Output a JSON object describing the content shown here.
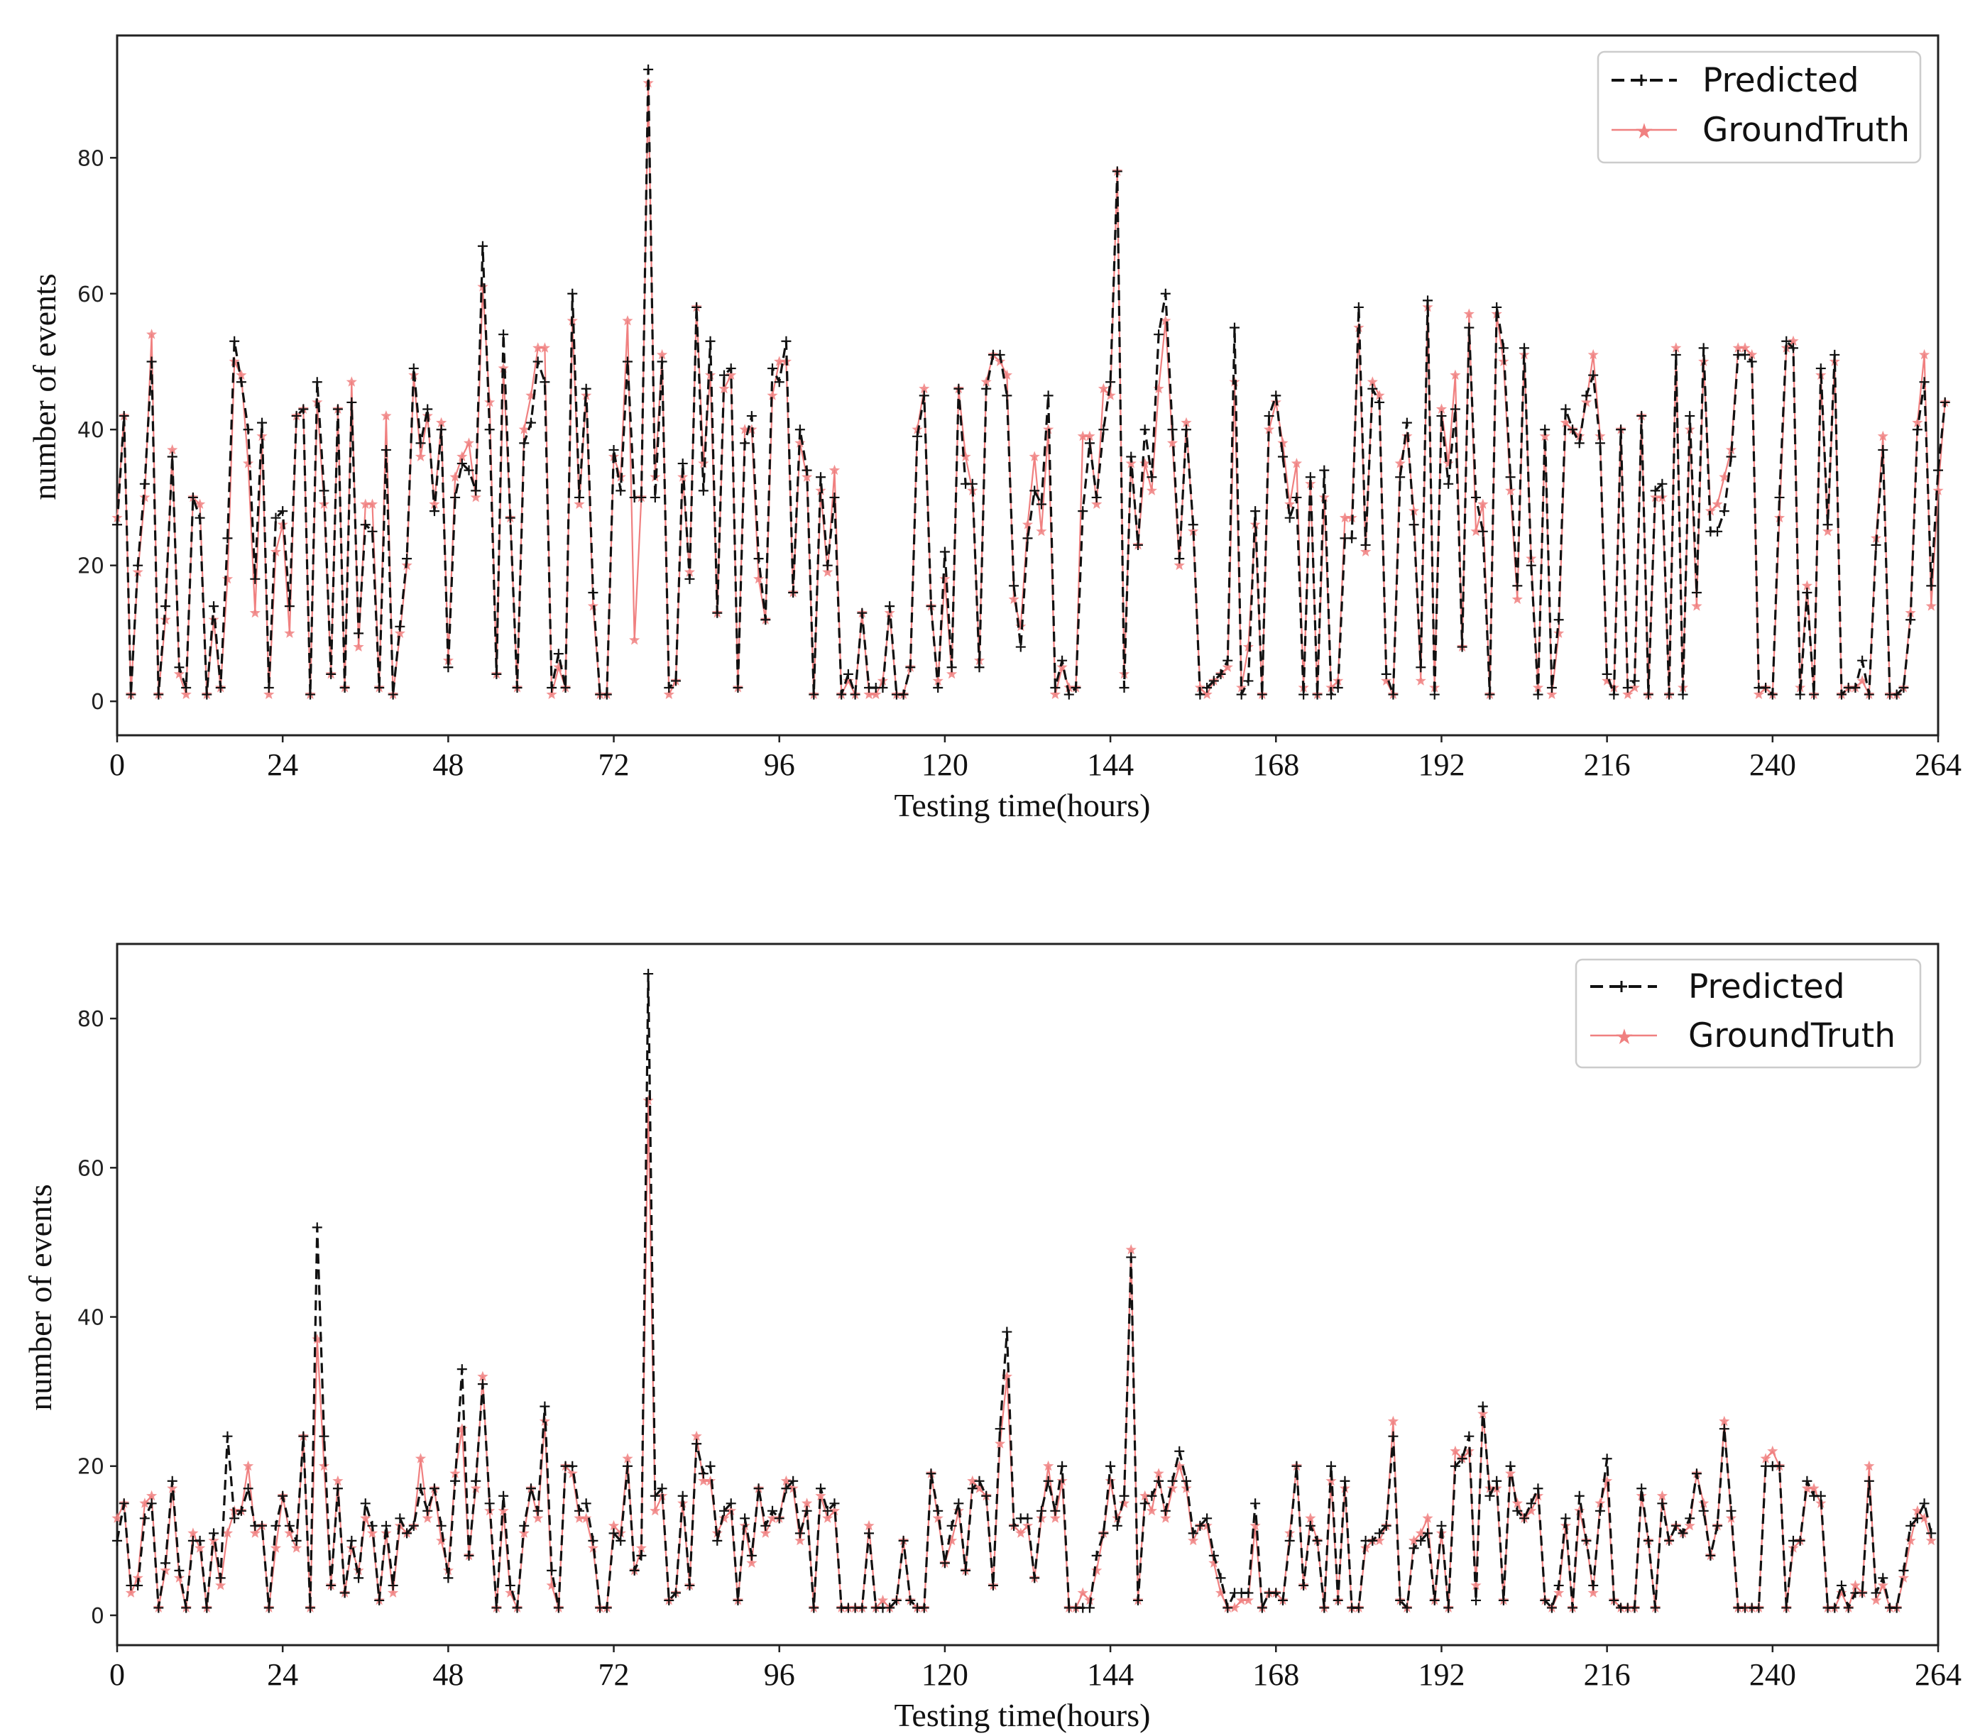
{
  "colors": {
    "predicted": "#111111",
    "groundtruth": "#f08080",
    "frame": "#222222",
    "background": "#ffffff"
  },
  "chart_data": [
    {
      "type": "line",
      "xlabel": "Testing time(hours)",
      "ylabel": "number of events",
      "xlim": [
        0,
        264
      ],
      "ylim": [
        -5,
        98
      ],
      "xticks": [
        "0",
        "24",
        "48",
        "72",
        "96",
        "120",
        "144",
        "168",
        "192",
        "216",
        "240",
        "264"
      ],
      "yticks": [
        "0",
        "20",
        "40",
        "60",
        "80"
      ],
      "legend": {
        "position": "top-right",
        "entries": [
          "Predicted",
          "GroundTruth"
        ]
      },
      "series": [
        {
          "name": "Predicted",
          "style": "dashed",
          "marker": "+",
          "values": [
            26,
            42,
            1,
            20,
            32,
            50,
            1,
            14,
            36,
            5,
            2,
            30,
            27,
            1,
            14,
            2,
            24,
            53,
            47,
            40,
            18,
            41,
            2,
            27,
            28,
            14,
            42,
            43,
            1,
            47,
            31,
            4,
            43,
            2,
            44,
            10,
            26,
            25,
            2,
            37,
            1,
            11,
            21,
            49,
            38,
            43,
            28,
            40,
            5,
            30,
            35,
            34,
            31,
            67,
            40,
            4,
            54,
            27,
            2,
            38,
            41,
            50,
            47,
            2,
            7,
            2,
            60,
            30,
            46,
            16,
            1,
            1,
            37,
            31,
            50,
            30,
            30,
            93,
            30,
            50,
            2,
            3,
            35,
            18,
            58,
            31,
            53,
            13,
            48,
            49,
            2,
            38,
            42,
            21,
            12,
            49,
            47,
            53,
            16,
            40,
            34,
            1,
            33,
            20,
            30,
            1,
            4,
            1,
            13,
            2,
            2,
            2,
            14,
            1,
            1,
            5,
            39,
            45,
            14,
            2,
            22,
            5,
            46,
            32,
            32,
            5,
            46,
            51,
            51,
            45,
            17,
            8,
            24,
            31,
            29,
            45,
            2,
            6,
            1,
            2,
            28,
            38,
            30,
            40,
            47,
            78,
            2,
            36,
            23,
            40,
            33,
            54,
            60,
            40,
            21,
            40,
            26,
            1,
            2,
            3,
            4,
            6,
            55,
            1,
            3,
            28,
            1,
            42,
            45,
            36,
            27,
            30,
            1,
            33,
            1,
            34,
            1,
            2,
            24,
            24,
            58,
            23,
            46,
            44,
            4,
            1,
            33,
            41,
            26,
            5,
            59,
            1,
            42,
            32,
            43,
            8,
            55,
            30,
            25,
            1,
            58,
            52,
            33,
            17,
            52,
            20,
            1,
            40,
            2,
            12,
            43,
            40,
            38,
            45,
            48,
            38,
            4,
            1,
            40,
            2,
            3,
            42,
            1,
            31,
            32,
            1,
            51,
            1,
            42,
            16,
            52,
            25,
            25,
            28,
            36,
            51,
            51,
            50,
            2,
            2,
            1,
            30,
            53,
            52,
            1,
            16,
            1,
            49,
            26,
            51,
            1,
            2,
            2,
            6,
            1,
            23,
            37,
            1,
            1,
            2,
            12,
            40,
            47,
            17,
            34,
            44
          ]
        },
        {
          "name": "GroundTruth",
          "style": "solid",
          "marker": "*",
          "values": [
            27,
            42,
            1,
            19,
            30,
            54,
            1,
            12,
            37,
            4,
            1,
            30,
            29,
            1,
            12,
            2,
            18,
            50,
            48,
            35,
            13,
            39,
            1,
            22,
            26,
            10,
            42,
            43,
            1,
            44,
            29,
            4,
            43,
            2,
            47,
            8,
            29,
            29,
            2,
            42,
            1,
            10,
            20,
            48,
            36,
            42,
            29,
            41,
            6,
            33,
            36,
            38,
            30,
            61,
            44,
            4,
            49,
            27,
            2,
            40,
            45,
            52,
            52,
            1,
            5,
            2,
            56,
            29,
            45,
            14,
            1,
            1,
            36,
            33,
            56,
            9,
            30,
            91,
            33,
            51,
            1,
            3,
            33,
            19,
            58,
            35,
            48,
            13,
            46,
            48,
            2,
            40,
            40,
            18,
            12,
            45,
            50,
            50,
            16,
            38,
            33,
            1,
            31,
            19,
            34,
            1,
            3,
            1,
            13,
            1,
            1,
            3,
            13,
            1,
            1,
            5,
            40,
            46,
            14,
            3,
            18,
            4,
            46,
            36,
            31,
            6,
            47,
            51,
            50,
            48,
            15,
            11,
            26,
            36,
            25,
            40,
            1,
            5,
            2,
            2,
            39,
            39,
            29,
            46,
            45,
            78,
            4,
            35,
            23,
            35,
            31,
            46,
            56,
            38,
            20,
            41,
            25,
            2,
            1,
            3,
            4,
            5,
            47,
            2,
            8,
            26,
            1,
            40,
            44,
            38,
            29,
            35,
            2,
            32,
            1,
            30,
            2,
            3,
            27,
            27,
            55,
            22,
            47,
            45,
            3,
            1,
            35,
            39,
            28,
            3,
            58,
            2,
            43,
            35,
            48,
            8,
            57,
            25,
            29,
            1,
            57,
            50,
            31,
            15,
            51,
            21,
            2,
            39,
            1,
            10,
            41,
            40,
            39,
            44,
            51,
            39,
            3,
            2,
            40,
            1,
            2,
            42,
            1,
            30,
            30,
            1,
            52,
            2,
            40,
            14,
            50,
            28,
            29,
            33,
            37,
            52,
            52,
            51,
            1,
            2,
            1,
            27,
            52,
            53,
            2,
            17,
            1,
            48,
            25,
            50,
            1,
            2,
            2,
            3,
            1,
            24,
            39,
            1,
            1,
            2,
            13,
            41,
            51,
            14,
            31,
            44
          ]
        }
      ]
    },
    {
      "type": "line",
      "xlabel": "Testing time(hours)",
      "ylabel": "number of events",
      "xlim": [
        0,
        264
      ],
      "ylim": [
        -4,
        90
      ],
      "xticks": [
        "0",
        "24",
        "48",
        "72",
        "96",
        "120",
        "144",
        "168",
        "192",
        "216",
        "240",
        "264"
      ],
      "yticks": [
        "0",
        "20",
        "40",
        "60",
        "80"
      ],
      "legend": {
        "position": "top-right",
        "entries": [
          "Predicted",
          "GroundTruth"
        ]
      },
      "series": [
        {
          "name": "Predicted",
          "style": "dashed",
          "marker": "+",
          "values": [
            10,
            15,
            4,
            4,
            13,
            15,
            1,
            7,
            18,
            6,
            1,
            10,
            10,
            1,
            11,
            5,
            24,
            13,
            14,
            17,
            12,
            12,
            1,
            12,
            16,
            12,
            10,
            24,
            1,
            52,
            24,
            4,
            17,
            3,
            10,
            5,
            15,
            12,
            2,
            12,
            4,
            13,
            11,
            12,
            17,
            14,
            17,
            12,
            5,
            18,
            33,
            8,
            18,
            31,
            15,
            1,
            16,
            4,
            1,
            12,
            17,
            14,
            28,
            6,
            1,
            20,
            20,
            14,
            15,
            10,
            1,
            1,
            11,
            10,
            20,
            6,
            8,
            86,
            16,
            17,
            2,
            3,
            16,
            4,
            23,
            19,
            20,
            10,
            14,
            15,
            2,
            13,
            8,
            17,
            12,
            14,
            13,
            17,
            18,
            11,
            14,
            1,
            17,
            14,
            15,
            1,
            1,
            1,
            1,
            11,
            1,
            1,
            1,
            2,
            10,
            2,
            1,
            1,
            19,
            14,
            7,
            12,
            15,
            6,
            17,
            18,
            16,
            4,
            25,
            38,
            12,
            13,
            13,
            5,
            14,
            18,
            14,
            20,
            1,
            1,
            1,
            1,
            8,
            11,
            20,
            12,
            16,
            48,
            2,
            15,
            16,
            18,
            14,
            18,
            22,
            18,
            11,
            12,
            13,
            8,
            5,
            1,
            3,
            3,
            3,
            15,
            1,
            3,
            3,
            2,
            10,
            20,
            4,
            12,
            10,
            1,
            20,
            2,
            18,
            1,
            1,
            10,
            10,
            11,
            12,
            24,
            2,
            1,
            9,
            10,
            11,
            2,
            12,
            1,
            20,
            21,
            24,
            2,
            28,
            16,
            18,
            2,
            20,
            14,
            13,
            15,
            17,
            2,
            1,
            4,
            13,
            1,
            16,
            10,
            4,
            14,
            21,
            2,
            1,
            1,
            1,
            17,
            10,
            1,
            15,
            10,
            12,
            11,
            13,
            19,
            14,
            8,
            12,
            25,
            14,
            1,
            1,
            1,
            1,
            20,
            20,
            20,
            1,
            10,
            10,
            18,
            16,
            16,
            1,
            1,
            4,
            1,
            3,
            3,
            18,
            3,
            5,
            1,
            1,
            6,
            12,
            13,
            15,
            11
          ]
        },
        {
          "name": "GroundTruth",
          "style": "solid",
          "marker": "*",
          "values": [
            13,
            15,
            3,
            5,
            15,
            16,
            1,
            6,
            17,
            5,
            1,
            11,
            9,
            1,
            10,
            4,
            11,
            14,
            14,
            20,
            11,
            12,
            1,
            9,
            16,
            11,
            9,
            24,
            1,
            37,
            20,
            4,
            18,
            3,
            9,
            6,
            13,
            11,
            2,
            11,
            3,
            12,
            11,
            12,
            21,
            13,
            17,
            10,
            6,
            19,
            25,
            8,
            17,
            32,
            14,
            1,
            14,
            3,
            1,
            11,
            17,
            13,
            26,
            4,
            1,
            20,
            19,
            13,
            13,
            9,
            1,
            1,
            12,
            11,
            21,
            6,
            9,
            69,
            14,
            16,
            2,
            3,
            15,
            4,
            24,
            18,
            18,
            11,
            13,
            14,
            2,
            12,
            7,
            17,
            11,
            13,
            13,
            18,
            17,
            10,
            15,
            1,
            16,
            13,
            14,
            1,
            1,
            1,
            1,
            12,
            1,
            2,
            1,
            2,
            10,
            2,
            1,
            1,
            19,
            13,
            7,
            10,
            14,
            6,
            18,
            17,
            16,
            4,
            23,
            32,
            12,
            11,
            12,
            5,
            13,
            20,
            13,
            18,
            1,
            1,
            3,
            2,
            6,
            11,
            18,
            13,
            15,
            49,
            2,
            16,
            14,
            19,
            13,
            17,
            20,
            17,
            10,
            12,
            12,
            7,
            3,
            1,
            1,
            2,
            2,
            12,
            1,
            3,
            3,
            2,
            11,
            20,
            4,
            13,
            10,
            1,
            18,
            2,
            17,
            1,
            1,
            9,
            10,
            10,
            12,
            26,
            2,
            1,
            10,
            11,
            13,
            2,
            11,
            1,
            22,
            21,
            22,
            4,
            27,
            17,
            17,
            2,
            19,
            15,
            13,
            14,
            16,
            2,
            1,
            3,
            12,
            1,
            14,
            10,
            3,
            15,
            18,
            2,
            1,
            1,
            1,
            16,
            10,
            1,
            16,
            10,
            12,
            11,
            12,
            19,
            15,
            8,
            12,
            26,
            13,
            1,
            1,
            1,
            1,
            21,
            22,
            20,
            1,
            9,
            10,
            17,
            17,
            15,
            1,
            1,
            3,
            1,
            4,
            3,
            20,
            2,
            4,
            1,
            1,
            5,
            10,
            14,
            13,
            10
          ]
        }
      ]
    }
  ]
}
